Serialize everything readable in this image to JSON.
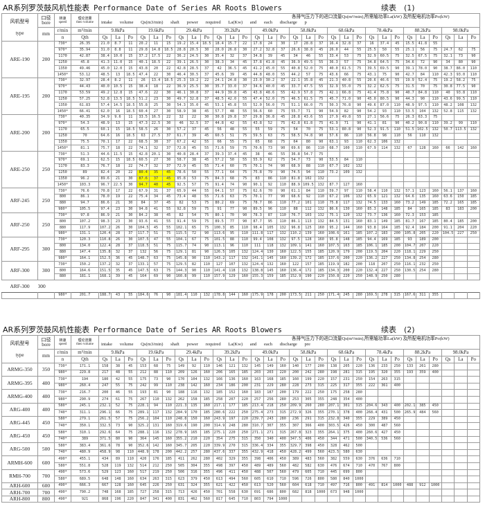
{
  "tables": [
    {
      "title_cn": "AR系列罗茨鼓风机性能表",
      "title_en": "Performance Date of Series AR Roots Blowers",
      "continuation": "续表　(1)",
      "header": {
        "type_cn": "风机型号",
        "type_en": "type",
        "bore_cn": "口径",
        "bore_en": "bore",
        "bore_unit": "mm",
        "speed_cn": "转速",
        "speed_en": "speed",
        "speed_unit": "r/min",
        "speed_sym": "n",
        "theo_cn": "理论流量",
        "theo_en": "theo volume",
        "theo_unit": "m³/min",
        "theo_sym": "Qth",
        "desc_cn": "各排气压力下的进口流量Qs(m³/min),所需轴功率La(kW) 及所配电机功率Po(kW)",
        "desc_en": "intake volume Qs(m3/min) shaft power required La(Kw) and each discharge p",
        "pressures": [
          "9.8kPa",
          "19.6kPa",
          "29.4kPa",
          "39.2kPa",
          "49.0kPa",
          "58.8kPa",
          "68.6kPa",
          "78.4kPa",
          "88.2kPa",
          "98.0kPa"
        ],
        "sub": [
          "Qs",
          "La",
          "Po"
        ]
      },
      "highlight": {
        "model": "ARE-250",
        "speeds": [
          "1250",
          "1350",
          "1450*"
        ],
        "pressure": "19.6kPa",
        "color": "#ffff00"
      },
      "groups": [
        {
          "model": "ARE-190",
          "bore": "200",
          "rows": [
            "730* 26.35 21.0 8.7 11 20.2 11 15 19.2 15.4 18.5 18.4 15.7 22 17.8 24 30 17 28.8 37 16.4 32.8 37 16 37.4 45 15.5 41.8 55 - - -",
            "970* 35.94 31.0 8.8 11 29.8 14.8 18.5 28.8 20.5 30 28.0 26.8 30 27.2 32.8 37 26.6 38.8 45 26.0 44 55 25.5 50 55 25.1 56 75 24.7 62 75",
            "1170 42.87 38.4 10.0 15 37.2 17.5 22 36.2 24.5 30 35.4 32 37 34.8 39 45 34 46 55 33.4 53 75 32.9 60.5 75 32.5 67.5 75 32.1 73 90",
            "1250 45.8 41.3 11.0 15 40.1 18.5 22 39.1 26.5 30 38.3 34 45 37.8 41.8 45 36.9 49.5 55 36.3 57 75 34.8 64.5 75 34.6 72 90 34 80 90",
            "1350 49.46 45.0 12.0 15 43.8 20 22 42.8 28.5 37 42 36.5 45 41.2 45.0 55 40.8 52.0 75 40.0 61.5 75 39.5 69.5 90 39.1 78.0 90 38.7 86.0 110",
            "1450* 53.12 48.5 13 18.5 47.4 22 30 46.4 30.5 37 45.6 39 45 44.8 48.0 55 44.2 57 75 43.6 66 75 43.1 75 90 42.7 84 110 42.3 93.0 110"
          ]
        },
        {
          "model": "ARE-195",
          "bore": "200",
          "rows": [
            "730* 32.97 28.4 8.2 11 26 13.4 18.5 25.3 19.2 22 24.1 24.8 30 23.0 30.2 37 22.1 35.8 45 21.3 40.8 55 20.6 46.6 55 19.9 52.4 75 19.2 58.2 75",
            "970* 44.43 40.0 10.5 15 38.4 18 22 36.9 25.5 30 35.7 33.0 37 34.6 40.0 45 33.7 47.5 55 32.9 55.0 75 32.2 62.5 75 31.5 70 75 30.8 77.5 90",
            "1170 53.59 49.2 12.8 15 47.6 22 30 46.1 30.8 37 44.9 39.8 45 43.8 48.6 55 42.9 57.8 75 42.1 66.8 75 41.4 75.8 90 40.7 84.8 110 40 93.8 110",
            "1250 57.25 52.8 13.5 18.5 51.2 23 30 49.7 32.8 37 48.5 42.0 55 47.4 52.0 75 46.5 61.5 75 45.7 71.0 90 45.0 80.5 90 44.3 90 110 43.6 99.5 110",
            "1350 61.83 57.4 14.5 18.5 55.8 25 30 54.3 35.0 45 53.1 45.8 55 52.0 56.0 75 51.1 66.0 75 50.3 76.8 90 49.6 87.0 110 48.9 97.5 110 48.2 108 132",
            "1450* 66.41 62.0 16 18.5 60.4 27 30 58.9 38 45 57.7 48 55 56.6 60 75 55.7 71 90 54.9 82 90 54.2 93 110 53.5 104 132 52.8 115 132"
          ]
        },
        {
          "model": "ARE-200",
          "bore": "200",
          "rows": [
            "730* 40.35 34.9 9.6 11 33.5 16.5 22 32 22 30 30.8 29.8 37 29.8 36.8 45 28.8 43.6 55 27.9 49.8 55 27.1 56.6 75 26.3 63.3 75 - - -",
            "970* 54.3 48.9 13 15 47.3 22.5 30 46 32.5 37 44.8 42 55 43.8 52 75 42.8 61.8 75 41.9 71 90 41.1 81 90 40.2 90.8 110 39.2 99 110",
            "1170 65.5 60.1 15 18.5 58.5 26 30 57.2 37 45 56 48 55 55 59 75 54 70 75 53.1 80.8 90 52.3 91.5 110 51.5 102.5 132 50.7 113.5 132",
            "1250 70 64.6 16 18.5 63 27.5 37 61.7 39 45 60.5 51 75 59.5 63 75 58.5 74.8 90 57.6 86 110 56.8 98 110 56 110 132 - - -",
            "1350 75.5 70.1 17 22 68.5 30 37 67.2 42 55 66 55 75 65 68 75 64 80 90 63.1 93 110 62.3 106 132 - - - - - -",
            "1450* 81.1 75.7 18 22 74.1 32 37 72.8 45 55 71.6 59 75 70.6 73 90 69.6 86 110 68.7 100 110 67.9 114 132 67 128 160 66 142 160"
          ]
        },
        {
          "model": "ARE-250",
          "bore": "250",
          "rows": [
            "730* 51.3 44.6 11.5 15 42.8 20.1 30 40.8 28.4 37 39.3 37.4 45 38 46 55 36.8 54.7 75 - - - - - - - - - - - -",
            "970* 69.1 62.5 15 18.5 60.5 27 30 58.7 38 45 57.2 50 55 55.9 62 75 54.7 73 90 53.5 84 110 - - - - - - - - -",
            "1170 83.3 76.7 18 22 74.7 32 37 72.9 45 55 71.4 60 75 70.1 74 90 68.9 88 110 67.7 102 132 - - - - - - - - -",
            "1250 89 82.4 20 22 80.4 35 45 78.6 50 55 77.1 64 75 75.8 79 90 74.5 94 110 73.2 109 132 - - - - - - - - -",
            "1350 96.2 89.6 21 30 87.6 37 45 85.8 53 75 84.3 68 75 83 86 110 81.8 102 132 - - - - - - - - - - - -",
            "1450* 103.3 96.7 22.5 30 94.7 40 45 92.5 57 75 91.4 74 90 90.1 92 110 88.9 109.5 132 87.7 127 160 - - - - - - - - -"
          ]
        },
        {
          "model": "ARF-245",
          "bore": "250",
          "rows": [
            "730* 76.6 70.8 17 22 67.9 31 37 65.9 44 55 64.1 57 75 62.6 70 90 61.1 84 110 59.7 97 110 58.4 110 132 57.1 123 160 56.1 137 160",
            "800 86.1 78.0 19 22 75.4 34 45 73.4 48 55 71.6 63 75 70.1 77 90 68.6 92 110 67.2 106 132 65.9 121 132 64.6 135 160 63.6 150 185",
            "880 94.7 86.6 21 30 84 37 45 82 53 75 80.2 69 75 78.7 86 110 77.2 101 110 75.8 117 132 74.5 133 160 73.2 149 185 72.2 165 185",
            "980* 105.5 97.4 23 30 94.8 41 55 92.8 59 75 91 77 90 89.5 96 110 88 112 132 86.6 130 160 85.3 148 185 84 165 185 83 183 200"
          ]
        },
        {
          "model": "ARF-250",
          "bore": "250",
          "rows": [
            "730* 97.8 86.9 21 30 84.2 38 45 82 54 75 80.1 70 90 78.3 87 110 76.7 103 132 75.1 120 132 73.7 136 160 72.3 153 185 - - -",
            "800 107.2 98.3 23 30 93.6 41 55 91.4 59 75 89.5 77 90 87.7 95 110 86.1 113 132 84.5 131 160 83.1 149 185 81.7 167 185 80.4 185 200",
            "880 117.9 107.2 26 30 104.5 45 55 102.1 65 75 100.3 85 110 98.4 105 132 96.8 125 160 95.2 144 160 93.8 164 185 92.4 184 200 91.1 204 220",
            "980* 131.1 120.4 28 37 117.7 51 75 115.5 72 90 113.6 95 110 111.8 117 132 110.2 139 160 108.6 161 185 107.2 183 200 105.8 205 220 104.5 227 250"
          ]
        },
        {
          "model": "ARF-295",
          "bore": "300",
          "rows": [
            "730* 120.3 110.8 26 30 107.5 47 55 104.1 67 75 101.5 88 110 99.4 108 132 97.5 128 160 95.8 148 185 94.4 169 185 93 189 200 - - -",
            "800 134.0 122.4 28 37 118.5 51 75 115.7 74 90 113.1 96 110 111 118 132 109.1 141 160 107.5 163 185 106.1 185 200 104.7 207 220 - - -",
            "880 147.4 135.8 32 37 132 56 75 129.1 81 90 126.5 105 132 124.4 130 160 122.5 155 185 120.9 179 200 119.5 204 220 118.1 229 250 - - -",
            "980* 164.1 152.5 36 45 148.7 63 75 145.8 90 110 143.2 117 132 141.1 145 160 139.2 172 185 137.6 200 220 136.2 227 250 134.8 254 280 - - -"
          ]
        },
        {
          "model": "ARF-300",
          "bore": "300",
          "rows": [
            "730* 150.2 137.2 32 37 133.1 57 75 129.5 82 110 127 107 132 124.4 132 160 122 157 185 119.9 182 200 118 207 250 116.1 232 250 - - -",
            "800 164.6 151.5 35 45 147.5 63 75 144.3 90 110 141.4 118 132 138.8 145 160 136.4 172 185 134.3 200 220 132.4 227 250 130.5 254 280 - - -",
            "880 181.1 168.1 39 45 164 69 90 160.8 99 110 157.9 129 160 155.3 159 185 152.9 190 220 150.8 220 250 148.9 250 280 - - - - - -"
          ]
        },
        {
          "model": "ARF-300",
          "bore": "300",
          "detached": true,
          "rows": [
            "980* 201.7 188.7 43 55 184.6 76 90 181.4 110 132 178.8 144 160 175.9 178 200 173.5 211 250 171.4 245 280 169.5 278 315 167.6 311 355 - - -"
          ]
        }
      ]
    },
    {
      "title_cn": "AR系列罗茨鼓风机性能表",
      "title_en": "Performance Date of Series AR Roots Blowers",
      "continuation": "续表　(2)",
      "header": {
        "type_cn": "风机型号",
        "type_en": "type",
        "bore_cn": "口径",
        "bore_en": "bore",
        "bore_unit": "mm",
        "speed_cn": "转速",
        "speed_en": "speed",
        "speed_unit": "r/min",
        "speed_sym": "n",
        "theo_cn": "理论流量",
        "theo_en": "theo volume",
        "theo_unit": "m³/min",
        "theo_sym": "Qth",
        "desc_cn": "各排气压力下的进口流量Qs(m³/min),所需轴功率La(kW) 及所配电机功率Po(kW)",
        "desc_en": "intake volume Qs(m3/min) shaft power required La(Kw) and each discharge pre",
        "pressures": [
          "9.8kPa",
          "19.6kPa",
          "29.4kPa",
          "39.2kPa",
          "49.0kPa",
          "58.8kPa",
          "68.6kPa",
          "78.4kPa",
          "88.2kPa",
          "98.0kPa"
        ],
        "sub": [
          "Qs",
          "La",
          "Po"
        ]
      },
      "groups": [
        {
          "model": "ARMG-350",
          "bore": "350",
          "rows": [
            "730* 171.1 158 38 45 153 68 75 149 92 110 146 121 132 145 149 160 140 177 200 138 205 220 136 233 250 133 261 280",
            "980* 229.8 217 48 55 212 88 110 209 126 160 206 165 185 203 203 220 200 242 280 198 281 315 195 320 355 193 359 400"
          ]
        },
        {
          "model": "ARMG-395",
          "bore": "400",
          "rows": [
            "730* 194 180 42 55 175 73 90 170 104 132 166 136 160 163 168 185 160 199 220 157 231 250 154 263 315",
            "980* 260.4 247 55 75 242 99 110 238 142 160 234 186 200 231 229 280 228 273 315 225 317 355 222 361 400"
          ]
        },
        {
          "model": "ARMG-400",
          "bore": "400",
          "rows": [
            "730* 216.7 200 46 55 193 81 90 188 116 132 185 152 160 183 187 200 179 222 250 175 258 280",
            "980* 290.9 274 61 75 267 110 132 262 158 185 258 207 220 257 256 280 253 305 355 248 354 400"
          ]
        },
        {
          "model": "ARG-400",
          "bore": "400",
          "rows": [
            "580* 245.1 232.1 52 75 228.1 94 110 221.3 135 160 217.1 177 185 213.4 218 250 209.9 260 280 207.1 301 315 204.6 343 400 202.1 385 450",
            "740* 311.1 296.1 66 75 289.1 117 132 284.9 170 185 280.6 222 250 275.4 273 315 272.9 326 355 270.1 378 400 268.4 431 500 265.9 484 560"
          ]
        },
        {
          "model": "ARG-445",
          "bore": "450",
          "rows": [
            "580* 279.1 261.5 57 75 256.2 104 110 248.8 150 160 243.9 197 220 239.7 243 280 236 291 315 232.8 340 355 229 389 450",
            "740* 350.1 332.5 73 90 325.2 131 160 319.6 190 200 314.9 248 280 310.7 307 355 307 366 400 303.5 426 450 300 487 560"
          ]
        },
        {
          "model": "ARG-450",
          "bore": "450",
          "rows": [
            "580* 310.1 292.6 64 75 288.1 116 132 278.9 165 185 275.1 220 250 271.1 271 315 267.8 323 355 264.1 375 400 260.6 427 450",
            "740* 389 371.5 80 90 364 145 160 355.2 210 220 354 275 315 350 340 400 347.5 406 450 344 471 500 340.5 536 560"
          ]
        },
        {
          "model": "ARG-500",
          "bore": "500",
          "rows": [
            "580* 383.4 361.6 78 90 352.6 142 160 345.7 205 220 339.9 270 315 336.4 334 355 329.7 398 450 328 462 500",
            "740* 480.9 458.9 98 110 448.9 178 200 442.2 257 280 437.6 337 355 432.9 418 450 428.2 499 560 423.5 580 630"
          ]
        },
        {
          "model": "ARMH-600",
          "bore": "600",
          "rows": [
            "490* 455.1 434 89 110 420 176 185 411 262 280 402 329 355 398 406 450 389 483 560 382 559 630 376 636 710",
            "580* 551.8 528 119 132 514 212 250 505 304 355 498 397 450 489 489 560 482 582 630 476 674 710 470 767 800"
          ]
        },
        {
          "model": "RMH-700",
          "bore": "700",
          "rows": [
            "490* 573.6 529 123 160 517 219 250 506 316 355 496 411 450 488 507 560 479 605 710 445 699 800",
            "580* 689.5 648 148 160 634 263 315 623 379 450 613 494 560 605 610 710 596 726 800 580 840 1000"
          ]
        },
        {
          "model": "ARH-600",
          "bore": "600",
          "rows": [
            "490* 666.3 667 128 160 645 226 250 631 324 355 621 422 450 613 520 560 604 618 710 497 716 800 491 814 1000 488 912 1000"
          ]
        },
        {
          "model": "ARH-700",
          "bore": "700",
          "rows": [
            "490* 790.2 748 168 185 727 258 315 713 426 450 701 558 630 691 686 800 682 818 1000 673 948 1000"
          ]
        },
        {
          "model": "ARH-800",
          "bore": "800",
          "rows": [
            "490* 921 868 196 220 847 341 400 831 462 560 817 645 710 803 794 1000"
          ]
        }
      ]
    }
  ]
}
